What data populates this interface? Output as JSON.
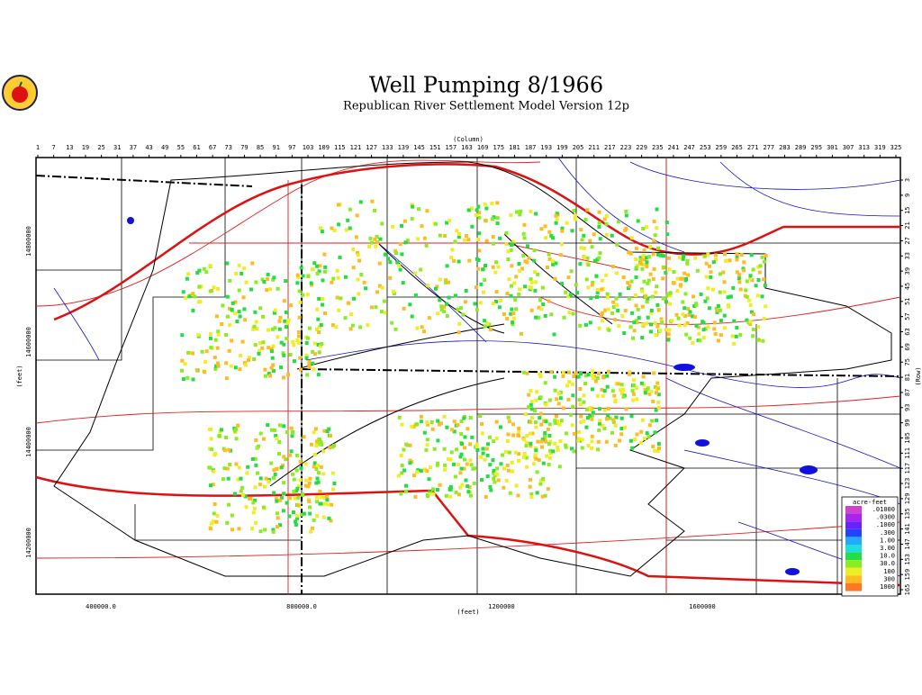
{
  "header": {
    "title": "Well Pumping  8/1966",
    "subtitle": "Republican River Settlement Model Version 12p"
  },
  "top_axis": {
    "label": "(Column)",
    "ticks": [
      1,
      7,
      13,
      19,
      25,
      31,
      37,
      43,
      49,
      55,
      61,
      67,
      73,
      79,
      85,
      91,
      97,
      103,
      109,
      115,
      121,
      127,
      133,
      139,
      145,
      151,
      157,
      163,
      169,
      175,
      181,
      187,
      193,
      199,
      205,
      211,
      217,
      223,
      229,
      235,
      241,
      247,
      253,
      259,
      265,
      271,
      277,
      283,
      289,
      295,
      301,
      307,
      313,
      319,
      325
    ]
  },
  "right_axis": {
    "label": "(Row)",
    "ticks": [
      3,
      9,
      15,
      21,
      27,
      33,
      39,
      45,
      51,
      57,
      63,
      69,
      75,
      81,
      87,
      93,
      99,
      105,
      111,
      117,
      123,
      129,
      135,
      141,
      147,
      153,
      159,
      165
    ]
  },
  "bottom_axis": {
    "label": "(feet)",
    "ticks": [
      "400000.0",
      "800000.0",
      "1200000",
      "1600000"
    ]
  },
  "left_axis": {
    "label": "(feet)",
    "ticks": [
      "14800000",
      "14600000",
      "14400000",
      "14200000"
    ]
  },
  "legend": {
    "title": "acre-feet",
    "items": [
      {
        "label": ".01000",
        "color": "#cc44cc"
      },
      {
        "label": ".0300",
        "color": "#aa22ee"
      },
      {
        "label": ".1000",
        "color": "#6622ff"
      },
      {
        "label": ".300",
        "color": "#2244ff"
      },
      {
        "label": "1.00",
        "color": "#22aaff"
      },
      {
        "label": "3.00",
        "color": "#22dddd"
      },
      {
        "label": "10.0",
        "color": "#22dd44"
      },
      {
        "label": "30.0",
        "color": "#88ee22"
      },
      {
        "label": "100",
        "color": "#eeee22"
      },
      {
        "label": "300",
        "color": "#ffbb22"
      },
      {
        "label": "1000",
        "color": "#ff7722"
      }
    ]
  }
}
